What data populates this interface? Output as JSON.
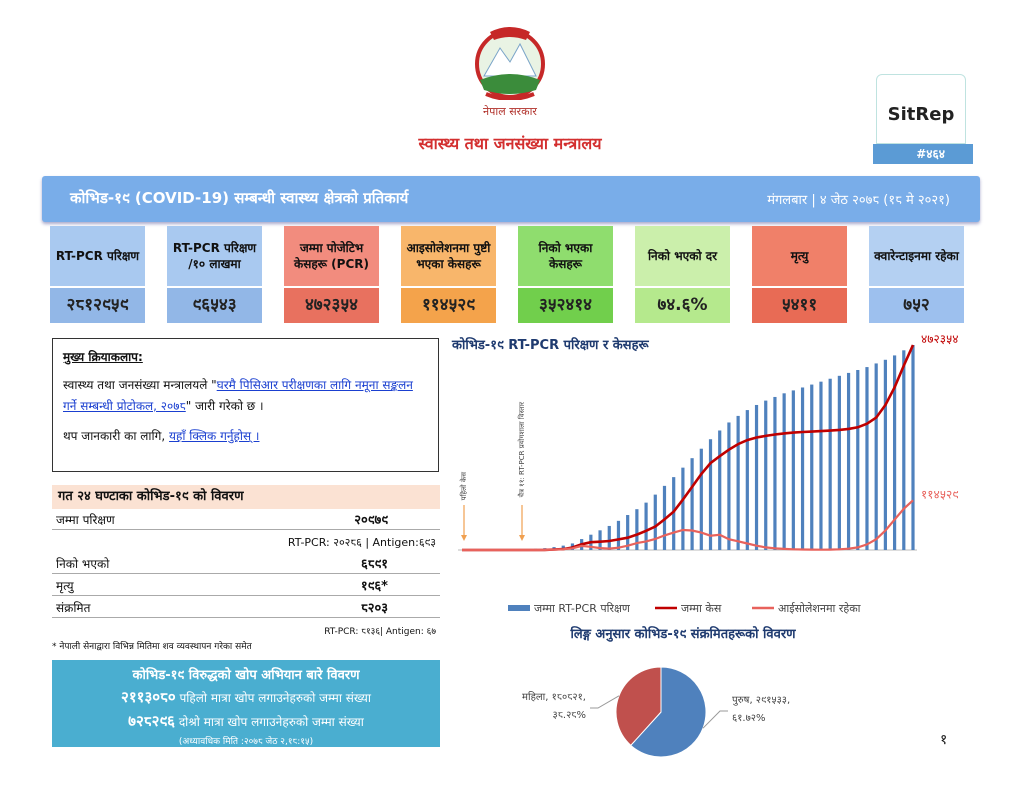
{
  "header": {
    "government": "नेपाल सरकार",
    "ministry": "स्वास्थ्य तथा जनसंख्या मन्त्रालय",
    "badge": "SitRep",
    "issue": "#४६४"
  },
  "banner": {
    "title": "कोभिड-१९ (COVID-19) सम्बन्धी स्वास्थ्य क्षेत्रको प्रतिकार्य",
    "date": "मंगलबार | ४ जेठ २०७८ (१८ मे २०२१)"
  },
  "cards": [
    {
      "label": "RT-PCR परिक्षण",
      "value": "२८१२९५९"
    },
    {
      "label": "RT-PCR परिक्षण /१० लाखमा",
      "value": "९६५४३"
    },
    {
      "label": "जम्मा पोजेटिभ केसहरू (PCR)",
      "value": "४७२३५४"
    },
    {
      "label": "आइसोलेशनमा पुष्टी भएका केसहरू",
      "value": "११४५२९"
    },
    {
      "label": "निको भएका केसहरू",
      "value": "३५२४१४"
    },
    {
      "label": "निको भएको दर",
      "value": "७४.६%"
    },
    {
      "label": "मृत्यु",
      "value": "५४११"
    },
    {
      "label": "क्वारेन्टाइनमा रहेका",
      "value": "७५२"
    }
  ],
  "activities": {
    "heading": "मुख्य क्रियाकलाप:",
    "paragraph_1": {
      "before": "स्वास्थ्य तथा जनसंख्या मन्त्रालयले \"",
      "link": "घरमै पिसिआर परीक्षणका लागि नमूना सङ्कलन गर्ने सम्बन्धी प्रोटोकल, २०७८",
      "after": "\" जारी गरेको छ ।"
    },
    "paragraph_2": {
      "before": "थप जानकारी का लागि, ",
      "link": "यहाँ क्लिक गर्नुहोस् ।"
    }
  },
  "last_24h": {
    "title": "गत २४ घण्टाका कोभिड-१९ को विवरण",
    "rows": [
      [
        "जम्मा परिक्षण",
        "२०९७९"
      ],
      [
        "निको भएको",
        "६८९१"
      ],
      [
        "मृत्यु",
        "१९६*"
      ],
      [
        "संक्रमित",
        "८२०३"
      ]
    ],
    "tests_breakdown": "RT-PCR: २०२८६ | Antigen:६९३",
    "infected_breakdown": "RT-PCR: ८१३६| Antigen: ६७",
    "footnote": "* नेपाली सेनाद्वारा विभिन्न मितिमा शव व्यवस्थापन गरेका समेत"
  },
  "vaccination": {
    "title": "कोभिड-१९ विरुद्धको खोप अभियान बारे विवरण",
    "first_dose": {
      "count": "२११३०८०",
      "text": "पहिलो मात्रा खोप लगाउनेहरुको जम्मा संख्या"
    },
    "second_dose": {
      "count": "७२८२९६",
      "text": "दोश्रो मात्रा खोप लगाउनेहरुको जम्मा संख्या"
    },
    "updated": "(अध्यावधिक मिति :२०७८ जेठ २,१८:१५)"
  },
  "page_number": "१",
  "chart_data": [
    {
      "type": "bar",
      "title": "कोभिड-१९ RT-PCR परिक्षण र केसहरू",
      "annotations": [
        "पहिलो केस",
        "चैत्र ११: RT-PCR प्रयोगशाला विस्तार"
      ],
      "series": [
        {
          "name": "जम्मा RT-PCR परिक्षण",
          "color": "#4f81bd",
          "axis": "y2",
          "values": [
            100,
            300,
            600,
            900,
            1200,
            2000,
            5000,
            9000,
            15000,
            25000,
            40000,
            60000,
            90000,
            150000,
            210000,
            270000,
            330000,
            400000,
            480000,
            560000,
            650000,
            760000,
            880000,
            1000000,
            1130000,
            1260000,
            1390000,
            1520000,
            1640000,
            1750000,
            1840000,
            1920000,
            1990000,
            2050000,
            2100000,
            2150000,
            2190000,
            2230000,
            2270000,
            2310000,
            2350000,
            2390000,
            2430000,
            2470000,
            2510000,
            2560000,
            2610000,
            2670000,
            2740000,
            2812959
          ]
        },
        {
          "name": "जम्मा केस",
          "color": "#c00000",
          "type": "line",
          "values": [
            1,
            1,
            1,
            1,
            1,
            3,
            9,
            17,
            57,
            300,
            1042,
            2099,
            5760,
            13248,
            17994,
            19063,
            20750,
            24432,
            28257,
            35529,
            44236,
            54159,
            70613,
            88373,
            116225,
            145482,
            175082,
            200142,
            216104,
            231191,
            243912,
            253177,
            259281,
            262981,
            266208,
            268646,
            270588,
            271856,
            272881,
            273875,
            275176,
            276839,
            279100,
            282797,
            290963,
            305000,
            334000,
            375000,
            425000,
            472354
          ],
          "value_labels": [
            null,
            null,
            null,
            null,
            null,
            null,
            null,
            null,
            null,
            null,
            null,
            null,
            null,
            null,
            null,
            null,
            null,
            null,
            null,
            null,
            null,
            null,
            null,
            null,
            null,
            null,
            null,
            null,
            null,
            null,
            null,
            null,
            null,
            null,
            null,
            null,
            null,
            null,
            null,
            null,
            null,
            null,
            null,
            null,
            null,
            null,
            null,
            null,
            null,
            "४७२३५४"
          ]
        },
        {
          "name": "आईसोलेशनमा रहेका",
          "color": "#e8625c",
          "type": "line",
          "values": [
            0,
            0,
            0,
            0,
            0,
            2,
            8,
            16,
            45,
            280,
            900,
            1800,
            3900,
            9500,
            7300,
            4300,
            3200,
            5400,
            9800,
            15800,
            19900,
            25300,
            33700,
            40000,
            46000,
            45000,
            40000,
            33000,
            35000,
            25000,
            20000,
            15000,
            10000,
            6000,
            4000,
            2500,
            1700,
            1200,
            900,
            800,
            900,
            1600,
            3000,
            6000,
            13000,
            25000,
            45000,
            70000,
            95000,
            114529
          ],
          "value_labels": [
            null,
            null,
            null,
            null,
            null,
            null,
            null,
            null,
            null,
            null,
            null,
            null,
            null,
            null,
            null,
            null,
            null,
            null,
            null,
            null,
            null,
            null,
            null,
            null,
            null,
            null,
            null,
            null,
            null,
            null,
            null,
            null,
            null,
            null,
            null,
            null,
            null,
            null,
            null,
            null,
            null,
            null,
            null,
            null,
            null,
            null,
            null,
            null,
            null,
            "११४५२९"
          ]
        }
      ]
    },
    {
      "type": "pie",
      "title": "लिङ्ग अनुसार कोभिड-१९ संक्रमितहरूको विवरण",
      "values": [
        291533,
        180821
      ],
      "colors": [
        "#4f81bd",
        "#c0504d"
      ],
      "value_labels": [
        [
          "पुरुष, २९१५३३,",
          "६१.७२%"
        ],
        [
          "महिला, १८०८२१,",
          "३८.२८%"
        ]
      ]
    }
  ]
}
